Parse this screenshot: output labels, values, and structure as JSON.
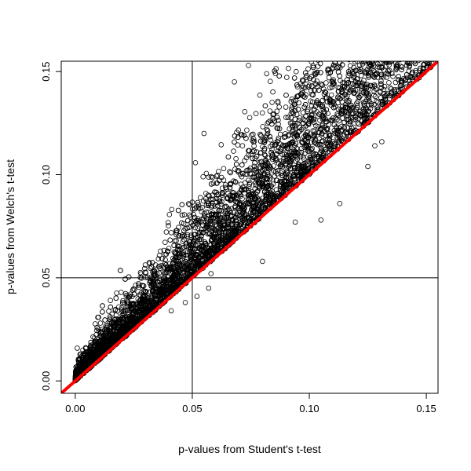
{
  "chart_data": {
    "type": "scatter",
    "title": "",
    "xlabel": "p-values from Student's t-test",
    "ylabel": "p-values from Welch's t-test",
    "xlim": [
      -0.006,
      0.155
    ],
    "ylim": [
      -0.006,
      0.155
    ],
    "x_ticks": [
      0.0,
      0.05,
      0.1,
      0.15
    ],
    "x_tick_labels": [
      "0.00",
      "0.05",
      "0.10",
      "0.15"
    ],
    "y_ticks": [
      0.0,
      0.05,
      0.1,
      0.15
    ],
    "y_tick_labels": [
      "0.00",
      "0.05",
      "0.10",
      "0.15"
    ],
    "grid": false,
    "legend": "none",
    "reference_lines": [
      {
        "orientation": "vertical",
        "value": 0.05,
        "color": "#000000"
      },
      {
        "orientation": "horizontal",
        "value": 0.05,
        "color": "#000000"
      }
    ],
    "identity_line": {
      "intercept": 0,
      "slope": 1,
      "color": "#ff0000"
    },
    "point_style": {
      "shape": "open-circle",
      "stroke": "#000000"
    },
    "outliers": [
      {
        "x": 0.08,
        "y": 0.058
      },
      {
        "x": 0.094,
        "y": 0.077
      },
      {
        "x": 0.105,
        "y": 0.078
      },
      {
        "x": 0.113,
        "y": 0.086
      },
      {
        "x": 0.125,
        "y": 0.104
      },
      {
        "x": 0.128,
        "y": 0.114
      },
      {
        "x": 0.123,
        "y": 0.124
      },
      {
        "x": 0.131,
        "y": 0.116
      },
      {
        "x": 0.143,
        "y": 0.144
      },
      {
        "x": 0.147,
        "y": 0.147
      },
      {
        "x": 0.052,
        "y": 0.041
      },
      {
        "x": 0.047,
        "y": 0.038
      },
      {
        "x": 0.041,
        "y": 0.034
      },
      {
        "x": 0.057,
        "y": 0.045
      },
      {
        "x": 0.058,
        "y": 0.052
      },
      {
        "x": 0.055,
        "y": 0.12
      },
      {
        "x": 0.068,
        "y": 0.145
      },
      {
        "x": 0.074,
        "y": 0.153
      }
    ]
  }
}
